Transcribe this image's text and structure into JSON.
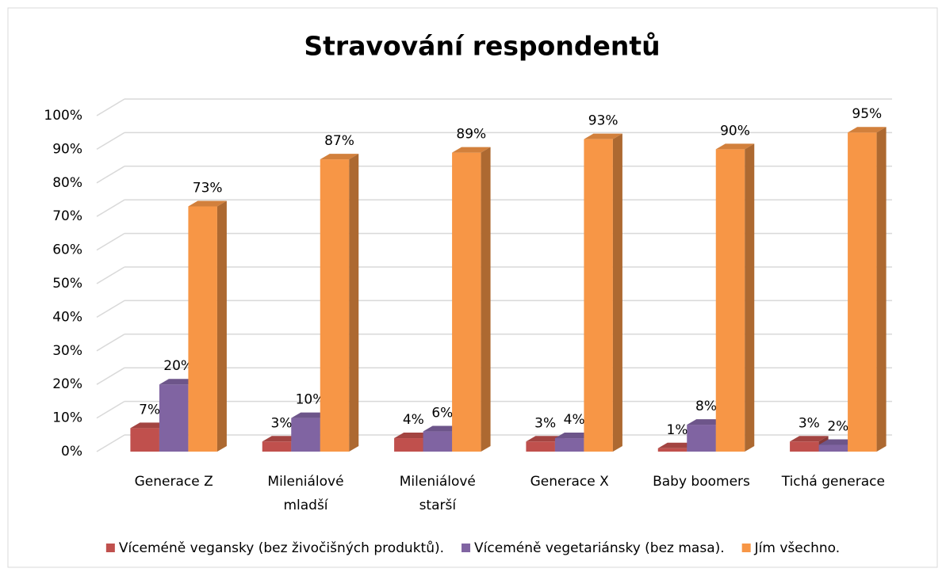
{
  "chart_data": {
    "type": "bar3d",
    "title": "Stravování respondentů",
    "categories": [
      "Generace Z",
      "Mileniálové mladší",
      "Mileniálové starší",
      "Generace X",
      "Baby boomers",
      "Tichá generace"
    ],
    "series": [
      {
        "name": "Víceméně vegansky (bez živočišných produktů).",
        "color": "#c0504d",
        "values": [
          7,
          3,
          4,
          3,
          1,
          3
        ],
        "value_labels": [
          "7%",
          "3%",
          "4%",
          "3%",
          "1%",
          "3%"
        ]
      },
      {
        "name": "Víceméně vegetariánsky (bez masa).",
        "color": "#8064a2",
        "values": [
          20,
          10,
          6,
          4,
          8,
          2
        ],
        "value_labels": [
          "20%",
          "10%",
          "6%",
          "4%",
          "8%",
          "2%"
        ]
      },
      {
        "name": "Jím všechno.",
        "color": "#f79646",
        "values": [
          73,
          87,
          89,
          93,
          90,
          95
        ],
        "value_labels": [
          "73%",
          "87%",
          "89%",
          "93%",
          "90%",
          "95%"
        ]
      }
    ],
    "ylim": [
      0,
      100
    ],
    "yticks": [
      {
        "value": 0,
        "label": "0%"
      },
      {
        "value": 10,
        "label": "10%"
      },
      {
        "value": 20,
        "label": "20%"
      },
      {
        "value": 30,
        "label": "30%"
      },
      {
        "value": 40,
        "label": "40%"
      },
      {
        "value": 50,
        "label": "50%"
      },
      {
        "value": 60,
        "label": "60%"
      },
      {
        "value": 70,
        "label": "70%"
      },
      {
        "value": 80,
        "label": "80%"
      },
      {
        "value": 90,
        "label": "90%"
      },
      {
        "value": 100,
        "label": "100%"
      }
    ],
    "grid": true,
    "legend": "bottom"
  }
}
